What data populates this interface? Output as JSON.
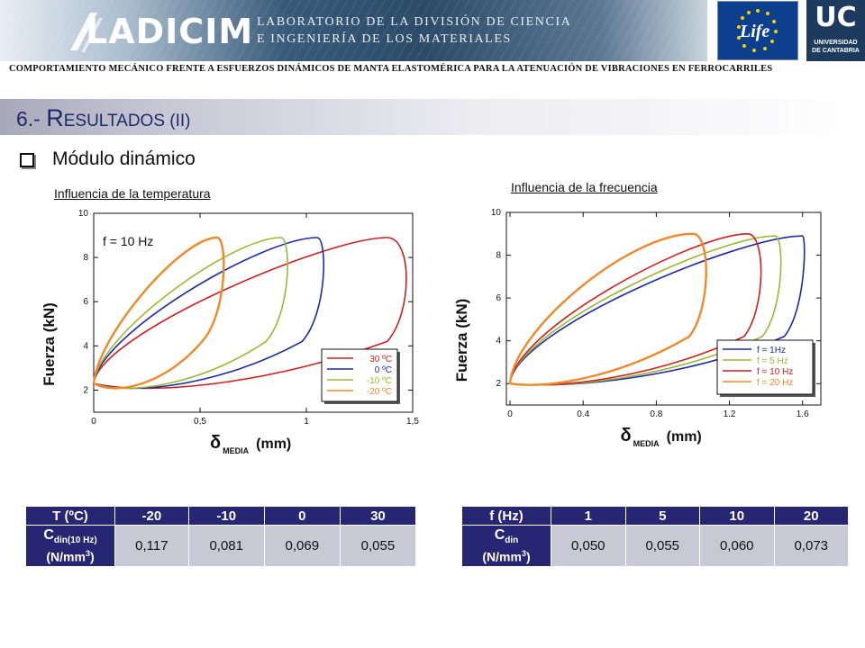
{
  "header": {
    "logo_text": "LADICIM",
    "lab_line1": "LABORATORIO DE LA DIVISIÓN DE CIENCIA",
    "lab_line2": "E INGENIERÍA DE LOS MATERIALES",
    "life_logo_text": "Life",
    "uc_logo_big": "UC",
    "uc_logo_line1": "UNIVERSIDAD",
    "uc_logo_line2": "DE CANTABRIA"
  },
  "subtitle": "COMPORTAMIENTO MECÁNICO FRENTE A ESFUERZOS DINÁMICOS DE MANTA ELASTOMÉRICA PARA LA ATENUACIÓN DE VIBRACIONES EN FERROCARRILES",
  "section": {
    "prefix": "6.- ",
    "initial": "R",
    "rest": "ESULTADOS",
    "suffix": " (II)"
  },
  "bullet": "Módulo dinámico",
  "captions": {
    "left": "Influencia de la temperatura",
    "right": "Influencia de la frecuencia"
  },
  "colors": {
    "red": "#cc1f1f",
    "blue": "#1c2aa6",
    "green": "#98b836",
    "orange": "#ee8a2c",
    "table_header": "#262673",
    "table_cell": "#c9c9d5"
  },
  "chart_data": [
    {
      "type": "line",
      "title": "",
      "annotation": "f = 10 Hz",
      "xlabel_symbol": "δ",
      "xlabel_sub": "MEDIA",
      "xlabel_unit": "(mm)",
      "ylabel": "Fuerza (kN)",
      "xlim": [
        0,
        1.5
      ],
      "ylim": [
        1,
        10
      ],
      "x_ticks": [
        "0",
        "0,5",
        "1",
        "1,5"
      ],
      "x_tick_values": [
        0,
        0.5,
        1,
        1.5
      ],
      "y_ticks": [
        "2",
        "4",
        "6",
        "8",
        "10"
      ],
      "y_tick_values": [
        2,
        4,
        6,
        8,
        10
      ],
      "legend_position": "bottom-right",
      "series": [
        {
          "name": "30 ºC",
          "color": "#cc1f1f",
          "loop": {
            "x_min": 0.0,
            "y_min": 2.3,
            "x_max": 1.38,
            "y_max": 8.9,
            "x_left_top": 1.3,
            "x_right_bottom": 0.25,
            "x_right": 1.5
          }
        },
        {
          "name": "0 ºC",
          "color": "#1c2aa6",
          "loop": {
            "x_min": 0.0,
            "y_min": 2.3,
            "x_max": 1.05,
            "y_max": 8.9,
            "x_left_top": 0.95,
            "x_right_bottom": 0.18,
            "x_right": 1.1
          }
        },
        {
          "name": "-10 ºC",
          "color": "#98b836",
          "loop": {
            "x_min": 0.0,
            "y_min": 2.3,
            "x_max": 0.88,
            "y_max": 8.9,
            "x_left_top": 0.78,
            "x_right_bottom": 0.15,
            "x_right": 0.93
          }
        },
        {
          "name": "-20 ºC",
          "color": "#ee8a2c",
          "loop": {
            "x_min": 0.0,
            "y_min": 2.3,
            "x_max": 0.58,
            "y_max": 8.9,
            "x_left_top": 0.5,
            "x_right_bottom": 0.1,
            "x_right": 0.63
          }
        }
      ]
    },
    {
      "type": "line",
      "title": "",
      "xlabel_symbol": "δ",
      "xlabel_sub": "MEDIA",
      "xlabel_unit": "(mm)",
      "ylabel": "Fuerza (kN)",
      "xlim": [
        -0.02,
        1.7
      ],
      "ylim": [
        1,
        10
      ],
      "x_ticks": [
        "0",
        "0.4",
        "0.8",
        "1.2",
        "1.6"
      ],
      "x_tick_values": [
        0,
        0.4,
        0.8,
        1.2,
        1.6
      ],
      "y_ticks": [
        "2",
        "4",
        "6",
        "8",
        "10"
      ],
      "y_tick_values": [
        2,
        4,
        6,
        8,
        10
      ],
      "legend_position": "bottom-right",
      "series": [
        {
          "name": "f = 1Hz",
          "color": "#1c2aa6",
          "loop": {
            "x_min": 0.0,
            "y_min": 2.0,
            "x_max": 1.6,
            "y_max": 8.9,
            "x_left_top": 1.5,
            "x_right_bottom": 0.3,
            "x_right": 1.62
          }
        },
        {
          "name": "f = 5 Hz",
          "color": "#98b836",
          "loop": {
            "x_min": 0.0,
            "y_min": 2.0,
            "x_max": 1.45,
            "y_max": 8.9,
            "x_left_top": 1.35,
            "x_right_bottom": 0.28,
            "x_right": 1.5
          }
        },
        {
          "name": "f = 10 Hz",
          "color": "#cc1f1f",
          "loop": {
            "x_min": 0.0,
            "y_min": 2.0,
            "x_max": 1.3,
            "y_max": 9.0,
            "x_left_top": 1.2,
            "x_right_bottom": 0.25,
            "x_right": 1.4
          }
        },
        {
          "name": "f = 20 Hz",
          "color": "#ee8a2c",
          "loop": {
            "x_min": 0.0,
            "y_min": 2.0,
            "x_max": 1.0,
            "y_max": 9.0,
            "x_left_top": 0.8,
            "x_right_bottom": 0.18,
            "x_right": 1.1
          }
        }
      ]
    }
  ],
  "table_temperature": {
    "header_label": "T (ºC)",
    "columns": [
      "-20",
      "-10",
      "0",
      "30"
    ],
    "row_label_main": "C",
    "row_label_sub": "din(10 Hz)",
    "row_label_unit": "(N/mm",
    "row_label_sup": "3",
    "row_label_close": ")",
    "values": [
      "0,117",
      "0,081",
      "0,069",
      "0,055"
    ]
  },
  "table_frequency": {
    "header_label": "f (Hz)",
    "columns": [
      "1",
      "5",
      "10",
      "20"
    ],
    "row_label_main": "C",
    "row_label_sub": "din",
    "row_label_unit": "(N/mm",
    "row_label_sup": "3",
    "row_label_close": ")",
    "values": [
      "0,050",
      "0,055",
      "0,060",
      "0,073"
    ]
  }
}
